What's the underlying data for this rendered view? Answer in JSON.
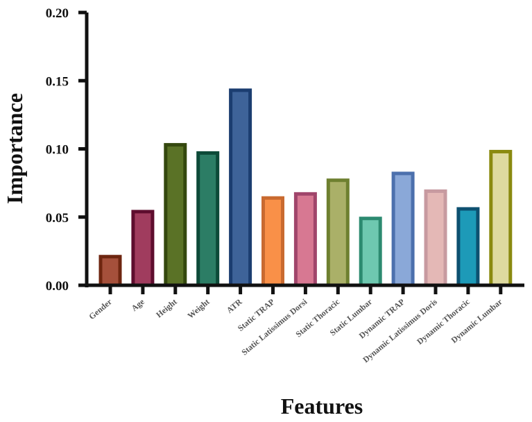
{
  "chart_data": {
    "type": "bar",
    "title": "",
    "xlabel": "Features",
    "ylabel": "Importance",
    "ylim": [
      0,
      0.2
    ],
    "yticks": [
      "0.00",
      "0.05",
      "0.10",
      "0.15",
      "0.20"
    ],
    "grid": false,
    "categories": [
      "Gender",
      "Age",
      "Height",
      "Weight",
      "ATR",
      "Static TRAP",
      "Static Latissimus Dorsi",
      "Static Thoracic",
      "Static Lumbar",
      "Dynamic TRAP",
      "Dynamic Latissimus Doris",
      "Dynamic Thoracic",
      "Dynamic Lumbar"
    ],
    "values": [
      0.021,
      0.054,
      0.103,
      0.097,
      0.143,
      0.064,
      0.067,
      0.077,
      0.049,
      0.082,
      0.069,
      0.056,
      0.098
    ],
    "colors": [
      {
        "fill": "#a5503b",
        "edge": "#6e2610"
      },
      {
        "fill": "#a03c5e",
        "edge": "#5e0d2e"
      },
      {
        "fill": "#5a7226",
        "edge": "#34480e"
      },
      {
        "fill": "#2c7d65",
        "edge": "#0d4a38"
      },
      {
        "fill": "#3e6399",
        "edge": "#1b3d70"
      },
      {
        "fill": "#f99048",
        "edge": "#c96a30"
      },
      {
        "fill": "#d77892",
        "edge": "#a0456b"
      },
      {
        "fill": "#aab068",
        "edge": "#6e8030"
      },
      {
        "fill": "#6ec8b0",
        "edge": "#2c8a70"
      },
      {
        "fill": "#8aa8d8",
        "edge": "#4c70ad"
      },
      {
        "fill": "#e4b8b6",
        "edge": "#c79aa0"
      },
      {
        "fill": "#1d9ab8",
        "edge": "#0d5070"
      },
      {
        "fill": "#dedaa0",
        "edge": "#8a8a10"
      }
    ]
  }
}
